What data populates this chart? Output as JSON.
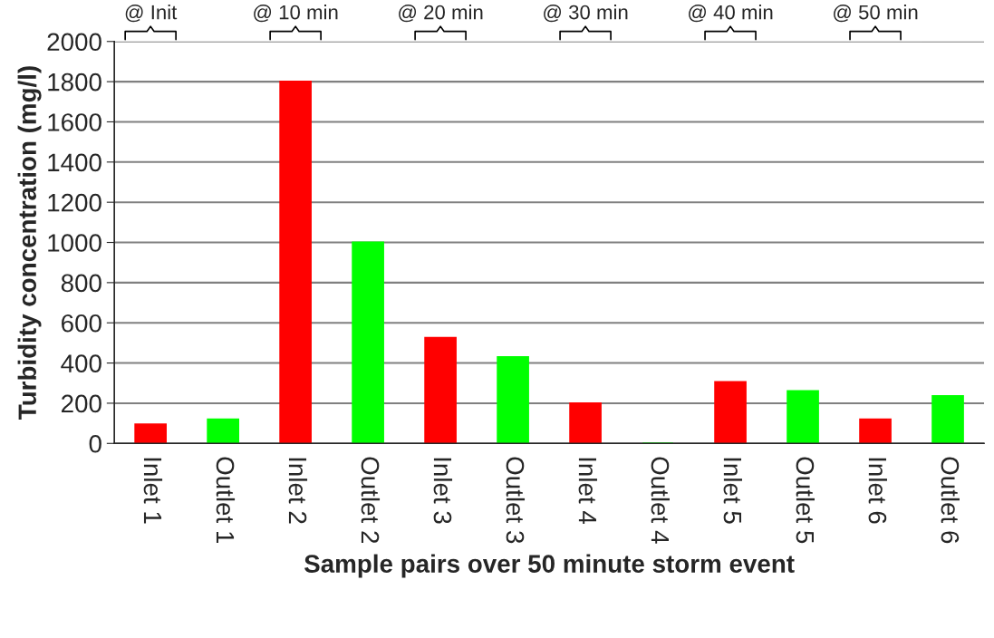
{
  "chart_data": {
    "type": "bar",
    "xlabel": "Sample pairs over 50 minute storm event",
    "ylabel": "Turbidity concentration (mg/l)",
    "categories": [
      "Inlet 1",
      "Outlet 1",
      "Inlet 2",
      "Outlet 2",
      "Inlet 3",
      "Outlet 3",
      "Inlet 4",
      "Outlet 4",
      "Inlet 5",
      "Outlet 5",
      "Inlet 6",
      "Outlet 6"
    ],
    "values": [
      95,
      120,
      1800,
      1000,
      525,
      430,
      200,
      0,
      305,
      260,
      120,
      235
    ],
    "colors": [
      "#ff0000",
      "#00ff00",
      "#ff0000",
      "#00ff00",
      "#ff0000",
      "#00ff00",
      "#ff0000",
      "#00ff00",
      "#ff0000",
      "#00ff00",
      "#ff0000",
      "#00ff00"
    ],
    "ylim": [
      0,
      2000
    ],
    "yticks": [
      0,
      200,
      400,
      600,
      800,
      1000,
      1200,
      1400,
      1600,
      1800,
      2000
    ],
    "grid": "y",
    "annotations": [
      "@ Init",
      "@ 10 min",
      "@ 20 min",
      "@ 30 min",
      "@ 40 min",
      "@ 50 min"
    ]
  }
}
